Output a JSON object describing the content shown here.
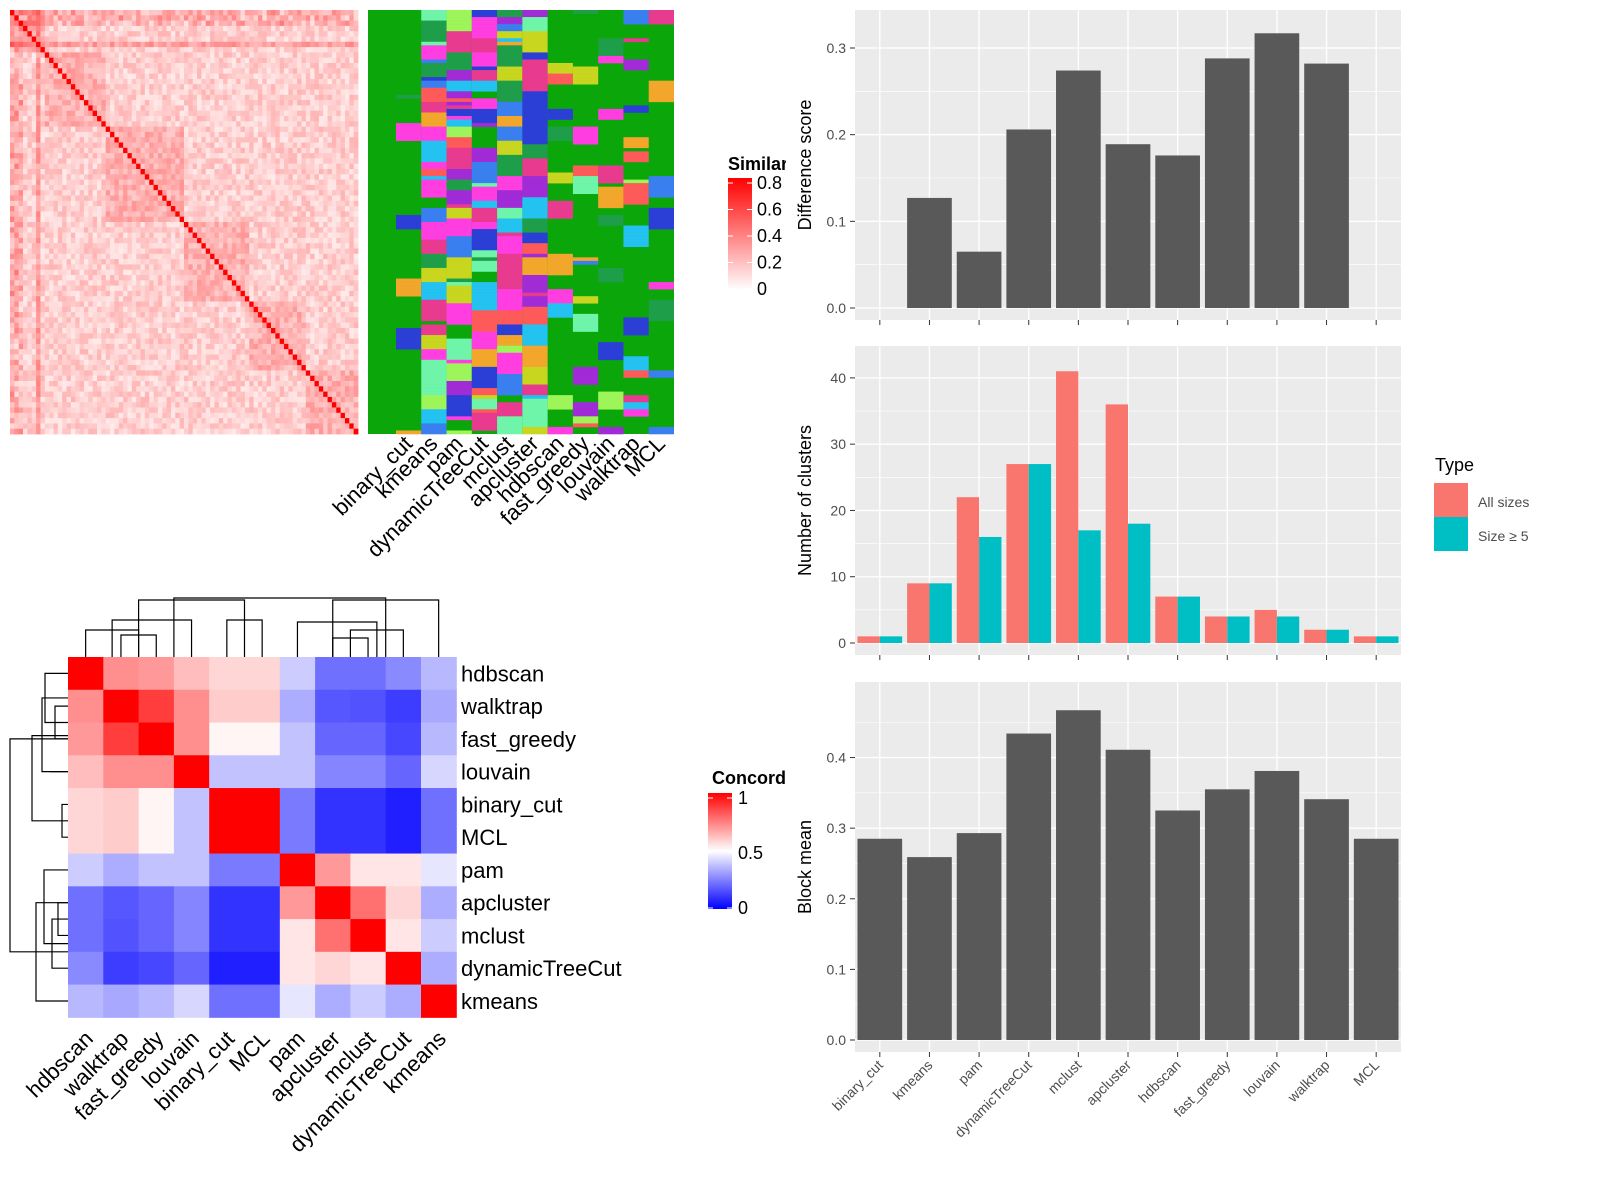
{
  "methods_order": [
    "binary_cut",
    "kmeans",
    "pam",
    "dynamicTreeCut",
    "mclust",
    "apcluster",
    "hdbscan",
    "fast_greedy",
    "louvain",
    "walktrap",
    "MCL"
  ],
  "heatmap_membership_labels": [
    "binary_cut",
    "kmeans",
    "pam",
    "dynamicTreeCut",
    "mclust",
    "apcluster",
    "hdbscan",
    "fast_greedy",
    "louvain",
    "walktrap",
    "MCL"
  ],
  "similarity_legend": {
    "title": "Similarity",
    "ticks": [
      "0.8",
      "0.6",
      "0.4",
      "0.2",
      "0"
    ]
  },
  "concordance_legend": {
    "title": "Concordance",
    "ticks": [
      "1",
      "0.5",
      "0"
    ]
  },
  "colors": {
    "panel_bg": "#ebebeb",
    "grid": "#ffffff",
    "bar": "#595959",
    "all_sizes": "#F8766D",
    "size_ge5": "#00BFC4",
    "membership_bg": "#0aa60a"
  },
  "chart_data": [
    {
      "type": "bar",
      "ylabel": "Difference score",
      "categories": [
        "binary_cut",
        "kmeans",
        "pam",
        "dynamicTreeCut",
        "mclust",
        "apcluster",
        "hdbscan",
        "fast_greedy",
        "louvain",
        "walktrap",
        "MCL"
      ],
      "values": [
        0,
        0.127,
        0.065,
        0.206,
        0.274,
        0.189,
        0.176,
        0.288,
        0.317,
        0.282,
        0
      ],
      "ylim": [
        0,
        0.33
      ],
      "yticks": [
        "0.0",
        "0.1",
        "0.2",
        "0.3"
      ],
      "grid": true
    },
    {
      "type": "bar",
      "ylabel": "Number of clusters",
      "categories": [
        "binary_cut",
        "kmeans",
        "pam",
        "dynamicTreeCut",
        "mclust",
        "apcluster",
        "hdbscan",
        "fast_greedy",
        "louvain",
        "walktrap",
        "MCL"
      ],
      "series": [
        {
          "name": "All sizes",
          "values": [
            1,
            9,
            22,
            27,
            41,
            36,
            7,
            4,
            5,
            2,
            1
          ]
        },
        {
          "name": "Size ≥ 5",
          "values": [
            1,
            9,
            16,
            27,
            17,
            18,
            7,
            4,
            4,
            2,
            1
          ]
        }
      ],
      "legend_title": "Type",
      "legend_position": "right",
      "ylim": [
        0,
        43
      ],
      "yticks": [
        "0",
        "10",
        "20",
        "30",
        "40"
      ],
      "grid": true
    },
    {
      "type": "bar",
      "ylabel": "Block mean",
      "categories": [
        "binary_cut",
        "kmeans",
        "pam",
        "dynamicTreeCut",
        "mclust",
        "apcluster",
        "hdbscan",
        "fast_greedy",
        "louvain",
        "walktrap",
        "MCL"
      ],
      "values": [
        0.285,
        0.259,
        0.293,
        0.434,
        0.467,
        0.411,
        0.325,
        0.355,
        0.381,
        0.341,
        0.285
      ],
      "ylim": [
        0,
        0.49
      ],
      "yticks": [
        "0.0",
        "0.1",
        "0.2",
        "0.3",
        "0.4"
      ],
      "grid": true
    },
    {
      "type": "heatmap",
      "title": "Concordance",
      "rows": [
        "hdbscan",
        "walktrap",
        "fast_greedy",
        "louvain",
        "binary_cut",
        "MCL",
        "pam",
        "apcluster",
        "mclust",
        "dynamicTreeCut",
        "kmeans"
      ],
      "cols": [
        "hdbscan",
        "walktrap",
        "fast_greedy",
        "louvain",
        "binary_cut",
        "MCL",
        "pam",
        "apcluster",
        "mclust",
        "dynamicTreeCut",
        "kmeans"
      ],
      "range": [
        0,
        1
      ],
      "values": [
        [
          1.0,
          0.72,
          0.7,
          0.63,
          0.58,
          0.58,
          0.4,
          0.22,
          0.22,
          0.27,
          0.36
        ],
        [
          0.72,
          1.0,
          0.88,
          0.72,
          0.6,
          0.6,
          0.34,
          0.17,
          0.16,
          0.12,
          0.33
        ],
        [
          0.7,
          0.88,
          1.0,
          0.72,
          0.52,
          0.52,
          0.38,
          0.2,
          0.2,
          0.14,
          0.36
        ],
        [
          0.63,
          0.72,
          0.72,
          1.0,
          0.38,
          0.38,
          0.38,
          0.26,
          0.26,
          0.2,
          0.42
        ],
        [
          0.58,
          0.6,
          0.52,
          0.38,
          1.0,
          1.0,
          0.24,
          0.1,
          0.1,
          0.06,
          0.22
        ],
        [
          0.58,
          0.6,
          0.52,
          0.38,
          1.0,
          1.0,
          0.24,
          0.1,
          0.1,
          0.06,
          0.22
        ],
        [
          0.4,
          0.34,
          0.38,
          0.38,
          0.24,
          0.24,
          1.0,
          0.7,
          0.55,
          0.55,
          0.45
        ],
        [
          0.22,
          0.17,
          0.2,
          0.26,
          0.1,
          0.1,
          0.7,
          1.0,
          0.78,
          0.58,
          0.34
        ],
        [
          0.22,
          0.16,
          0.2,
          0.26,
          0.1,
          0.1,
          0.55,
          0.78,
          1.0,
          0.55,
          0.4
        ],
        [
          0.27,
          0.12,
          0.14,
          0.2,
          0.06,
          0.06,
          0.55,
          0.58,
          0.55,
          1.0,
          0.34
        ],
        [
          0.36,
          0.33,
          0.36,
          0.42,
          0.22,
          0.22,
          0.45,
          0.34,
          0.4,
          0.34,
          1.0
        ]
      ]
    }
  ]
}
